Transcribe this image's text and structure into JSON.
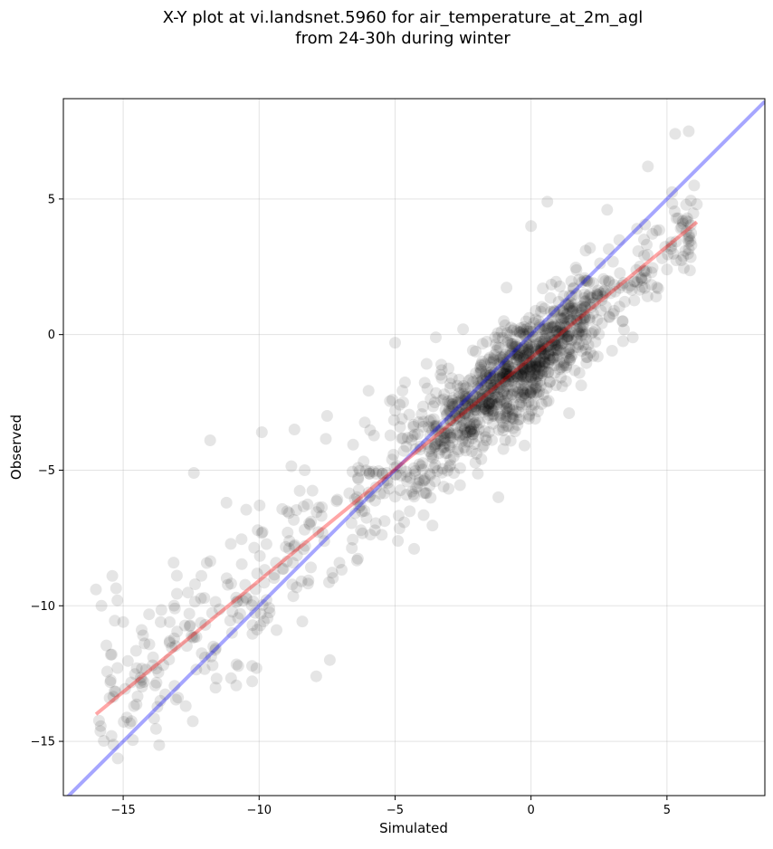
{
  "chart_data": {
    "type": "scatter",
    "title_line1": "X-Y plot at vi.landsnet.5960 for air_temperature_at_2m_agl",
    "title_line2": "from 24-30h during winter",
    "xlabel": "Simulated",
    "ylabel": "Observed",
    "xlim": [
      -17.2,
      8.6
    ],
    "ylim": [
      -17.0,
      8.7
    ],
    "xticks": [
      -15,
      -10,
      -5,
      0,
      5
    ],
    "yticks": [
      -15,
      -10,
      -5,
      0,
      5
    ],
    "xtick_labels": [
      "−15",
      "−10",
      "−5",
      "0",
      "5"
    ],
    "ytick_labels": [
      "−15",
      "−10",
      "−5",
      "0",
      "5"
    ],
    "grid": true,
    "point_color": "#000000",
    "point_opacity": 0.1,
    "points_summary": {
      "count": 1400,
      "x_range": [
        -16.2,
        6.1
      ]
    },
    "reference_line": {
      "color": "#0000ff",
      "opacity": 0.35,
      "x": [
        -17.2,
        8.6
      ],
      "y": [
        -17.2,
        8.6
      ]
    },
    "fit_line": {
      "color": "#ff0000",
      "opacity": 0.35,
      "x": [
        -16.0,
        6.1
      ],
      "y": [
        -14.0,
        4.15
      ]
    },
    "anchor_points": [
      [
        -16.0,
        -9.4
      ],
      [
        -15.8,
        -10.0
      ],
      [
        -15.4,
        -8.9
      ],
      [
        -15.0,
        -10.6
      ],
      [
        -14.6,
        -13.7
      ],
      [
        -15.5,
        -13.4
      ],
      [
        -14.5,
        -12.3
      ],
      [
        -13.9,
        -11.9
      ],
      [
        -13.1,
        -10.1
      ],
      [
        -12.7,
        -13.7
      ],
      [
        -12.4,
        -5.1
      ],
      [
        -11.8,
        -3.9
      ],
      [
        -11.2,
        -6.2
      ],
      [
        -10.1,
        -12.3
      ],
      [
        -9.9,
        -3.6
      ],
      [
        -8.7,
        -3.5
      ],
      [
        -7.9,
        -12.6
      ],
      [
        -7.5,
        -3.0
      ],
      [
        -7.4,
        -12.0
      ],
      [
        -4.3,
        -7.9
      ],
      [
        -5.1,
        -2.4
      ],
      [
        -5.0,
        -0.3
      ],
      [
        -3.5,
        -0.1
      ],
      [
        -2.5,
        0.2
      ],
      [
        -1.2,
        -6.0
      ],
      [
        -1.0,
        0.5
      ],
      [
        0.0,
        4.0
      ],
      [
        0.6,
        4.9
      ],
      [
        1.4,
        -2.9
      ],
      [
        2.2,
        1.0
      ],
      [
        2.8,
        4.6
      ],
      [
        3.9,
        3.9
      ],
      [
        4.3,
        6.2
      ],
      [
        4.6,
        1.4
      ],
      [
        5.0,
        2.4
      ],
      [
        5.3,
        7.4
      ],
      [
        5.8,
        7.5
      ],
      [
        5.9,
        3.3
      ],
      [
        6.0,
        5.5
      ],
      [
        6.1,
        4.8
      ]
    ]
  }
}
